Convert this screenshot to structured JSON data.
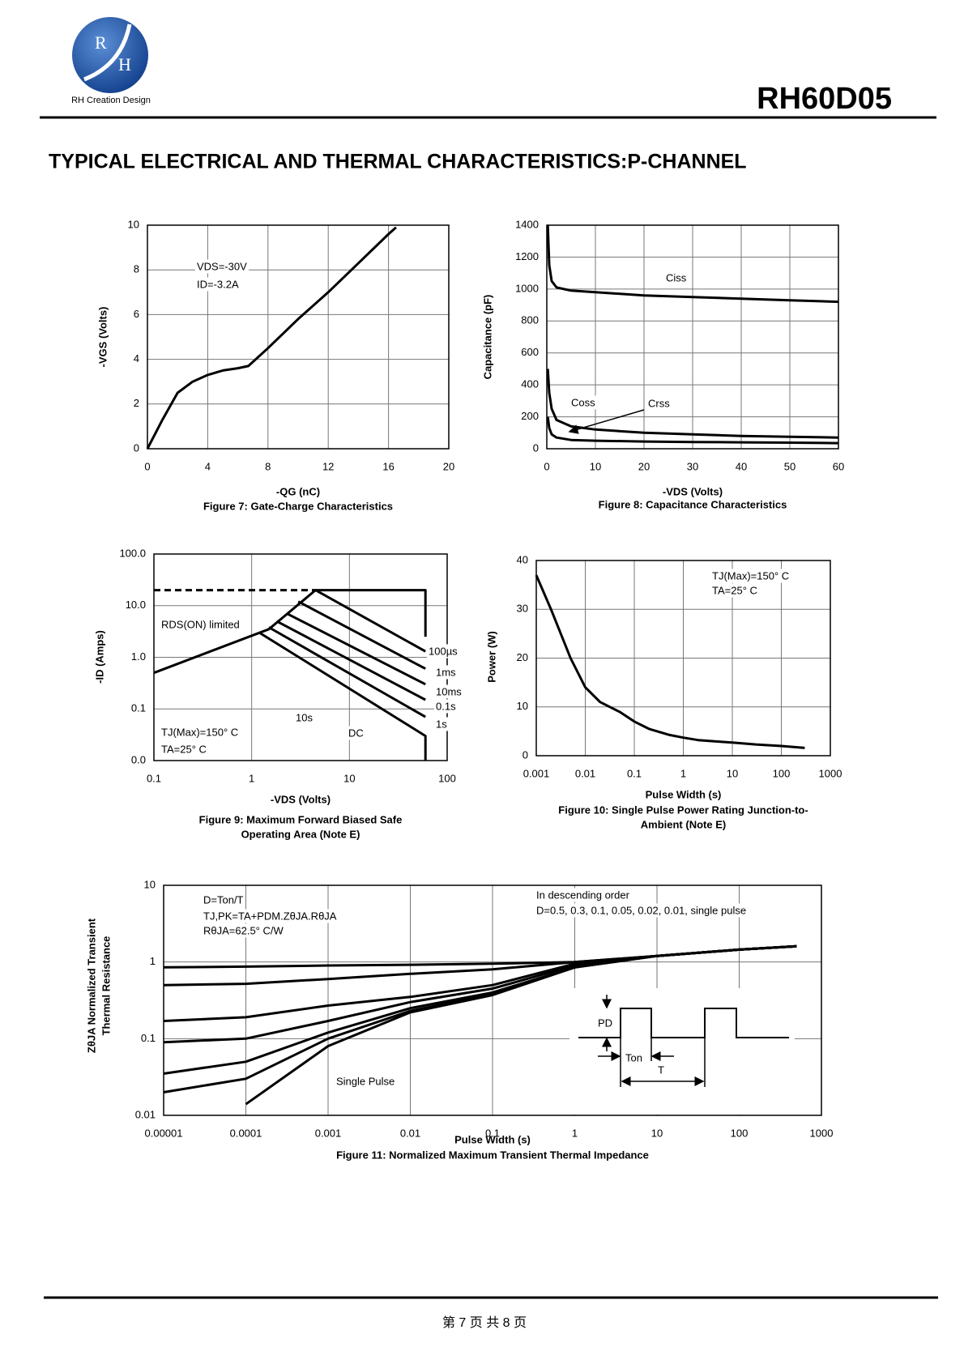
{
  "header": {
    "logo_letters": [
      "R",
      "H"
    ],
    "company": "RH Creation Design",
    "part_number": "RH60D05"
  },
  "heading": "TYPICAL ELECTRICAL AND THERMAL CHARACTERISTICS:P-CHANNEL",
  "footer": "第 7 页 共 8 页",
  "chart_data": [
    {
      "type": "line",
      "title": [
        "Figure 7: Gate-Charge Characteristics"
      ],
      "xlabel": "-QG (nC)",
      "ylabel": "-VGS (Volts)",
      "xlim": [
        0,
        20
      ],
      "xticks": [
        0,
        4,
        8,
        12,
        16,
        20
      ],
      "ylim": [
        0,
        10
      ],
      "yticks": [
        0,
        2,
        4,
        6,
        8,
        10
      ],
      "grid": true,
      "color": "#000000",
      "annotations": [
        "VDS=-30V",
        "ID=-3.2A"
      ],
      "series": [
        {
          "x": [
            0,
            1,
            2,
            3,
            4,
            5,
            6,
            6.7,
            8,
            10,
            12,
            14,
            16,
            16.5
          ],
          "values": [
            0,
            1.3,
            2.5,
            3.0,
            3.3,
            3.5,
            3.6,
            3.7,
            4.5,
            5.8,
            7.0,
            8.3,
            9.6,
            9.9
          ]
        }
      ]
    },
    {
      "type": "line",
      "title": [
        "Figure 8: Capacitance Characteristics"
      ],
      "xlabel": "-VDS (Volts)",
      "ylabel": "Capacitance (pF)",
      "xlim": [
        0,
        60
      ],
      "xticks": [
        0,
        10,
        20,
        30,
        40,
        50,
        60
      ],
      "ylim": [
        0,
        1400
      ],
      "yticks": [
        0,
        200,
        400,
        600,
        800,
        1000,
        1200,
        1400
      ],
      "grid": true,
      "color": "#000000",
      "annotations": [],
      "x": [
        0.2,
        0.5,
        1,
        2,
        5,
        10,
        20,
        30,
        40,
        50,
        60
      ],
      "series": [
        {
          "name": "Ciss",
          "values": [
            1400,
            1150,
            1050,
            1010,
            990,
            980,
            960,
            950,
            940,
            930,
            920
          ]
        },
        {
          "name": "Coss",
          "values": [
            500,
            350,
            250,
            180,
            140,
            120,
            100,
            90,
            80,
            75,
            70
          ]
        },
        {
          "name": "Crss",
          "values": [
            200,
            130,
            90,
            70,
            55,
            50,
            45,
            42,
            40,
            38,
            35
          ]
        }
      ]
    },
    {
      "type": "line",
      "title": [
        "Figure 9: Maximum Forward Biased Safe",
        "Operating Area (Note E)"
      ],
      "xlabel": "-VDS (Volts)",
      "ylabel": "-ID (Amps)",
      "xscale": "log",
      "yscale": "log",
      "xlim": [
        0.1,
        100
      ],
      "xticks": [
        0.1,
        1,
        10,
        100
      ],
      "ylim": [
        0.01,
        100
      ],
      "yticks": [
        {
          "value": 0.01,
          "label": "0.0"
        },
        {
          "value": 0.1,
          "label": "0.1"
        },
        {
          "value": 1,
          "label": "1.0"
        },
        {
          "value": 10,
          "label": "10.0"
        },
        {
          "value": 100,
          "label": "100.0"
        }
      ],
      "grid": true,
      "color": "#000000",
      "annotations": [
        "TJ(Max)=150° C",
        "TA=25° C"
      ],
      "series": [
        {
          "name": "RDS(ON) limited",
          "x": [
            0.1,
            1.5,
            4.5
          ],
          "values": [
            0.5,
            3.5,
            20
          ]
        },
        {
          "dashed": true,
          "x": [
            0.1,
            4.5
          ],
          "values": [
            20,
            20
          ]
        },
        {
          "name": "100µs",
          "x": [
            4.5,
            60,
            60
          ],
          "values": [
            20,
            20,
            2.5
          ]
        },
        {
          "name": "1ms",
          "x": [
            4.5,
            60
          ],
          "values": [
            20,
            1.3
          ]
        },
        {
          "name": "10ms",
          "x": [
            3,
            60
          ],
          "values": [
            12,
            0.6
          ]
        },
        {
          "name": "0.1s",
          "x": [
            2.3,
            60
          ],
          "values": [
            7,
            0.3
          ]
        },
        {
          "name": "1s",
          "x": [
            1.8,
            60
          ],
          "values": [
            5,
            0.15
          ]
        },
        {
          "name": "10s",
          "x": [
            1.5,
            60
          ],
          "values": [
            3.8,
            0.07
          ]
        },
        {
          "name": "DC",
          "x": [
            1.2,
            60,
            60
          ],
          "values": [
            3,
            0.03,
            0.01
          ]
        }
      ]
    },
    {
      "type": "line",
      "title": [
        "Figure 10: Single Pulse Power Rating Junction-to-",
        "Ambient (Note E)"
      ],
      "xlabel": "Pulse Width (s)",
      "ylabel": "Power (W)",
      "xscale": "log",
      "xlim": [
        0.001,
        1000
      ],
      "xticks": [
        0.001,
        0.01,
        0.1,
        1,
        10,
        100,
        1000
      ],
      "ylim": [
        0,
        40
      ],
      "yticks": [
        0,
        10,
        20,
        30,
        40
      ],
      "grid": true,
      "color": "#000000",
      "annotations": [
        "TJ(Max)=150° C",
        "TA=25° C"
      ],
      "series": [
        {
          "x": [
            0.001,
            0.002,
            0.005,
            0.01,
            0.02,
            0.05,
            0.1,
            0.2,
            0.5,
            1,
            2,
            5,
            10,
            30,
            100,
            300
          ],
          "values": [
            37,
            30,
            20,
            14,
            11,
            9,
            7,
            5.5,
            4.3,
            3.7,
            3.2,
            2.9,
            2.7,
            2.3,
            2,
            1.6
          ]
        }
      ]
    },
    {
      "type": "line",
      "title": [
        "Figure 11: Normalized Maximum Transient Thermal Impedance"
      ],
      "xlabel": "Pulse Width (s)",
      "ylabel": [
        "ZθJA Normalized Transient",
        "Thermal Resistance"
      ],
      "xscale": "log",
      "yscale": "log",
      "xlim": [
        1e-05,
        1000
      ],
      "xticks": [
        1e-05,
        0.0001,
        0.001,
        0.01,
        0.1,
        1,
        10,
        100,
        1000
      ],
      "ylim": [
        0.01,
        10
      ],
      "yticks": [
        0.01,
        0.1,
        1,
        10
      ],
      "grid": true,
      "color": "#000000",
      "annotations": [
        "D=Ton/T",
        "TJ,PK=TA+PDM.ZθJA.RθJA",
        "RθJA=62.5° C/W",
        "In descending order",
        "D=0.5, 0.3, 0.1, 0.05, 0.02, 0.01, single pulse",
        "Single Pulse"
      ],
      "inset_labels": [
        "PD",
        "Ton",
        "T"
      ],
      "x": [
        1e-05,
        0.0001,
        0.001,
        0.01,
        0.1,
        1,
        10,
        100,
        500
      ],
      "series": [
        {
          "values": [
            0.85,
            0.87,
            0.9,
            0.92,
            0.95,
            1.0,
            1.2,
            1.45,
            1.6
          ]
        },
        {
          "values": [
            0.5,
            0.52,
            0.6,
            0.7,
            0.8,
            1.0,
            1.2,
            1.45,
            1.6
          ]
        },
        {
          "values": [
            0.17,
            0.19,
            0.27,
            0.35,
            0.5,
            0.95,
            1.2,
            1.45,
            1.6
          ]
        },
        {
          "values": [
            0.09,
            0.1,
            0.17,
            0.3,
            0.45,
            0.9,
            1.2,
            1.45,
            1.6
          ]
        },
        {
          "values": [
            0.035,
            0.05,
            0.12,
            0.25,
            0.4,
            0.85,
            1.2,
            1.45,
            1.6
          ]
        },
        {
          "values": [
            0.02,
            0.03,
            0.1,
            0.23,
            0.38,
            0.85,
            1.2,
            1.45,
            1.6
          ]
        },
        {
          "values": [
            null,
            0.014,
            0.08,
            0.22,
            0.37,
            0.85,
            1.2,
            1.45,
            1.6
          ]
        }
      ]
    }
  ]
}
